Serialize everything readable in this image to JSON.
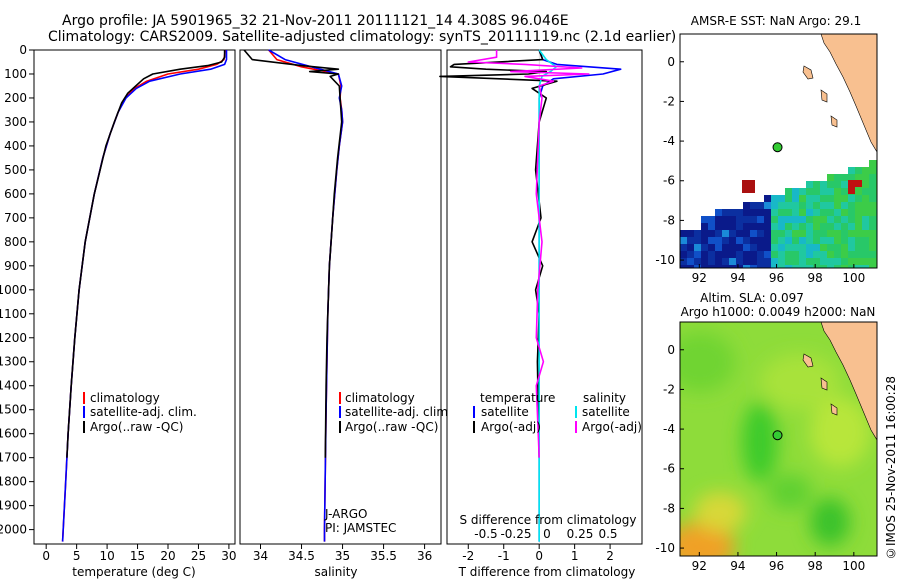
{
  "header": {
    "title_line1": "Argo profile: JA 5901965_32 21-Nov-2011 20111121_14 4.308S 96.046E",
    "title_line2": "Climatology: CARS2009. Satellite-adjusted climatology: synTS_20111119.nc (2.1d earlier)"
  },
  "colors": {
    "climatology": "#ff0000",
    "satellite": "#0000ff",
    "argo": "#000000",
    "satellite_sal": "#00e5ee",
    "argo_sal": "#ff00ff",
    "land": "#f8c090",
    "marker": "#33cc33"
  },
  "chart_data": [
    {
      "type": "line",
      "name": "temperature-profile",
      "xlabel": "temperature (deg C)",
      "ylabel": "depth",
      "xlim": [
        -2,
        31
      ],
      "ylim": [
        2060,
        0
      ],
      "x_ticks": [
        0,
        5,
        10,
        15,
        20,
        25,
        30
      ],
      "y_ticks": [
        0,
        100,
        200,
        300,
        400,
        500,
        600,
        700,
        800,
        900,
        1000,
        1100,
        1200,
        1300,
        1400,
        1500,
        1600,
        1700,
        1800,
        1900,
        2000
      ],
      "legend": [
        "climatology",
        "satellite-adj. clim.",
        "Argo(..raw -QC)"
      ],
      "series": [
        {
          "name": "climatology",
          "depth": [
            0,
            40,
            60,
            80,
            100,
            130,
            160,
            200,
            260,
            350,
            450,
            600,
            800,
            1000,
            1200,
            1400,
            1600,
            1800,
            2000,
            2050
          ],
          "values": [
            29.4,
            29.2,
            28,
            25,
            20,
            16.5,
            14.5,
            13,
            11.8,
            10.5,
            9.3,
            7.9,
            6.4,
            5.4,
            4.7,
            4.1,
            3.6,
            3.2,
            2.8,
            2.7
          ]
        },
        {
          "name": "satellite-adj. clim.",
          "depth": [
            0,
            40,
            60,
            80,
            100,
            130,
            160,
            200,
            260,
            350,
            450,
            600,
            800,
            1000,
            1200,
            1400,
            1600,
            1800,
            2000,
            2050
          ],
          "values": [
            29.6,
            29.6,
            29.3,
            27,
            22,
            17,
            14.8,
            13.1,
            11.8,
            10.5,
            9.3,
            7.9,
            6.4,
            5.4,
            4.7,
            4.1,
            3.6,
            3.2,
            2.8,
            2.7
          ]
        },
        {
          "name": "Argo(..raw -QC)",
          "depth": [
            0,
            30,
            50,
            65,
            80,
            100,
            120,
            150,
            180,
            220,
            300,
            400,
            600,
            800,
            1000,
            1200,
            1400,
            1600,
            1700
          ],
          "values": [
            29.3,
            29.3,
            28.8,
            26.5,
            22,
            17.5,
            16,
            14.7,
            13.4,
            12.4,
            11.2,
            9.8,
            7.9,
            6.4,
            5.4,
            4.7,
            4.1,
            3.6,
            3.4
          ]
        }
      ]
    },
    {
      "type": "line",
      "name": "salinity-profile",
      "xlabel": "salinity",
      "xlim": [
        33.75,
        36.2
      ],
      "ylim": [
        2060,
        0
      ],
      "x_ticks": [
        34,
        34.5,
        35,
        35.5,
        36
      ],
      "legend": [
        "climatology",
        "satellite-adj. clim.",
        "Argo(..raw -QC)"
      ],
      "annotations": [
        "J-ARGO",
        "PI: JAMSTEC"
      ],
      "series": [
        {
          "name": "climatology",
          "depth": [
            0,
            40,
            70,
            100,
            150,
            200,
            250,
            300,
            400,
            500,
            700,
            900,
            1100,
            1500,
            2000,
            2050
          ],
          "values": [
            34.1,
            34.2,
            34.5,
            34.95,
            34.98,
            34.97,
            34.99,
            35.0,
            34.96,
            34.93,
            34.88,
            34.84,
            34.82,
            34.8,
            34.78,
            34.78
          ]
        },
        {
          "name": "satellite-adj. clim.",
          "depth": [
            0,
            40,
            70,
            100,
            150,
            200,
            250,
            300,
            400,
            500,
            700,
            900,
            1100,
            1500,
            2000,
            2050
          ],
          "values": [
            34.1,
            34.3,
            34.62,
            34.95,
            34.99,
            34.96,
            34.99,
            35.0,
            34.96,
            34.93,
            34.88,
            34.84,
            34.82,
            34.8,
            34.78,
            34.78
          ]
        },
        {
          "name": "Argo(..raw -QC)",
          "depth": [
            0,
            40,
            65,
            80,
            90,
            100,
            110,
            150,
            200,
            300,
            450,
            600,
            800,
            900,
            1000,
            1200,
            1400,
            1700
          ],
          "values": [
            33.8,
            33.9,
            34.5,
            34.95,
            34.6,
            34.95,
            34.85,
            34.96,
            34.97,
            34.99,
            34.94,
            34.9,
            34.86,
            34.84,
            34.83,
            34.81,
            34.8,
            34.79
          ]
        }
      ]
    },
    {
      "type": "line",
      "name": "difference-profile",
      "xlabel": "T difference from climatology",
      "xlabel2": "S difference from climatology",
      "xlim": [
        -2.6,
        2.9
      ],
      "ylim": [
        2060,
        0
      ],
      "x_ticks": [
        -2,
        -1,
        0,
        1,
        2
      ],
      "x_ticks_S": [
        "-0.5",
        "-0.25",
        "0",
        "0.25",
        "0.5"
      ],
      "legend_headers": [
        "temperature",
        "salinity"
      ],
      "legend": [
        "satellite",
        "Argo(-adj)",
        "satellite",
        "Argo(-adj)"
      ],
      "series": [
        {
          "name": "T satellite",
          "depth": [
            0,
            40,
            60,
            80,
            100,
            120,
            150,
            200,
            300,
            2050
          ],
          "values": [
            0,
            0.1,
            0.5,
            2.3,
            1.8,
            0.4,
            0.1,
            0,
            0,
            0
          ]
        },
        {
          "name": "T Argo(-adj)",
          "depth": [
            0,
            40,
            60,
            70,
            80,
            90,
            100,
            110,
            130,
            160,
            200,
            300,
            500,
            700,
            800,
            900,
            1000,
            1100,
            1300,
            1700
          ],
          "values": [
            0,
            0.1,
            -2.4,
            -2.5,
            -1.5,
            0.2,
            -0.3,
            -2.8,
            0.5,
            -0.2,
            0.2,
            0,
            -0.1,
            0.05,
            -0.2,
            0.1,
            -0.1,
            0,
            -0.05,
            0
          ]
        },
        {
          "name": "S satellite",
          "depth": [
            0,
            40,
            70,
            90,
            110,
            150,
            200,
            400,
            2050
          ],
          "values": [
            0,
            0.05,
            0.12,
            0.08,
            0.02,
            0,
            0,
            0,
            0
          ]
        },
        {
          "name": "S Argo(-adj)",
          "depth": [
            0,
            30,
            50,
            60,
            75,
            90,
            100,
            110,
            130,
            150,
            200,
            300,
            600,
            800,
            1000,
            1200,
            1300,
            1400,
            1700
          ],
          "values": [
            -0.3,
            -0.3,
            -0.5,
            -0.1,
            0.3,
            -0.2,
            0.35,
            -0.1,
            0.1,
            0,
            0.02,
            0,
            -0.02,
            0.02,
            -0.01,
            -0.02,
            0.03,
            -0.02,
            0
          ]
        }
      ]
    },
    {
      "type": "heatmap",
      "name": "sst-map",
      "title": "AMSR-E SST: NaN Argo: 29.1",
      "xlim": [
        91,
        101.2
      ],
      "ylim": [
        -10.4,
        1.4
      ],
      "x_ticks": [
        92,
        94,
        96,
        98,
        100
      ],
      "y_ticks": [
        0,
        -2,
        -4,
        -6,
        -8,
        -10
      ],
      "argo_position": [
        96.05,
        -4.31
      ]
    },
    {
      "type": "heatmap",
      "name": "sla-map",
      "title_line1": "Altim. SLA: 0.097",
      "title_line2": "Argo h1000: 0.0049 h2000: NaN",
      "xlim": [
        91,
        101.2
      ],
      "ylim": [
        -10.4,
        1.4
      ],
      "x_ticks": [
        92,
        94,
        96,
        98,
        100
      ],
      "y_ticks": [
        0,
        -2,
        -4,
        -6,
        -8,
        -10
      ],
      "argo_position": [
        96.05,
        -4.31
      ]
    }
  ],
  "footer": {
    "stamp": "©IMOS 25-Nov-2011 16:00:28"
  }
}
